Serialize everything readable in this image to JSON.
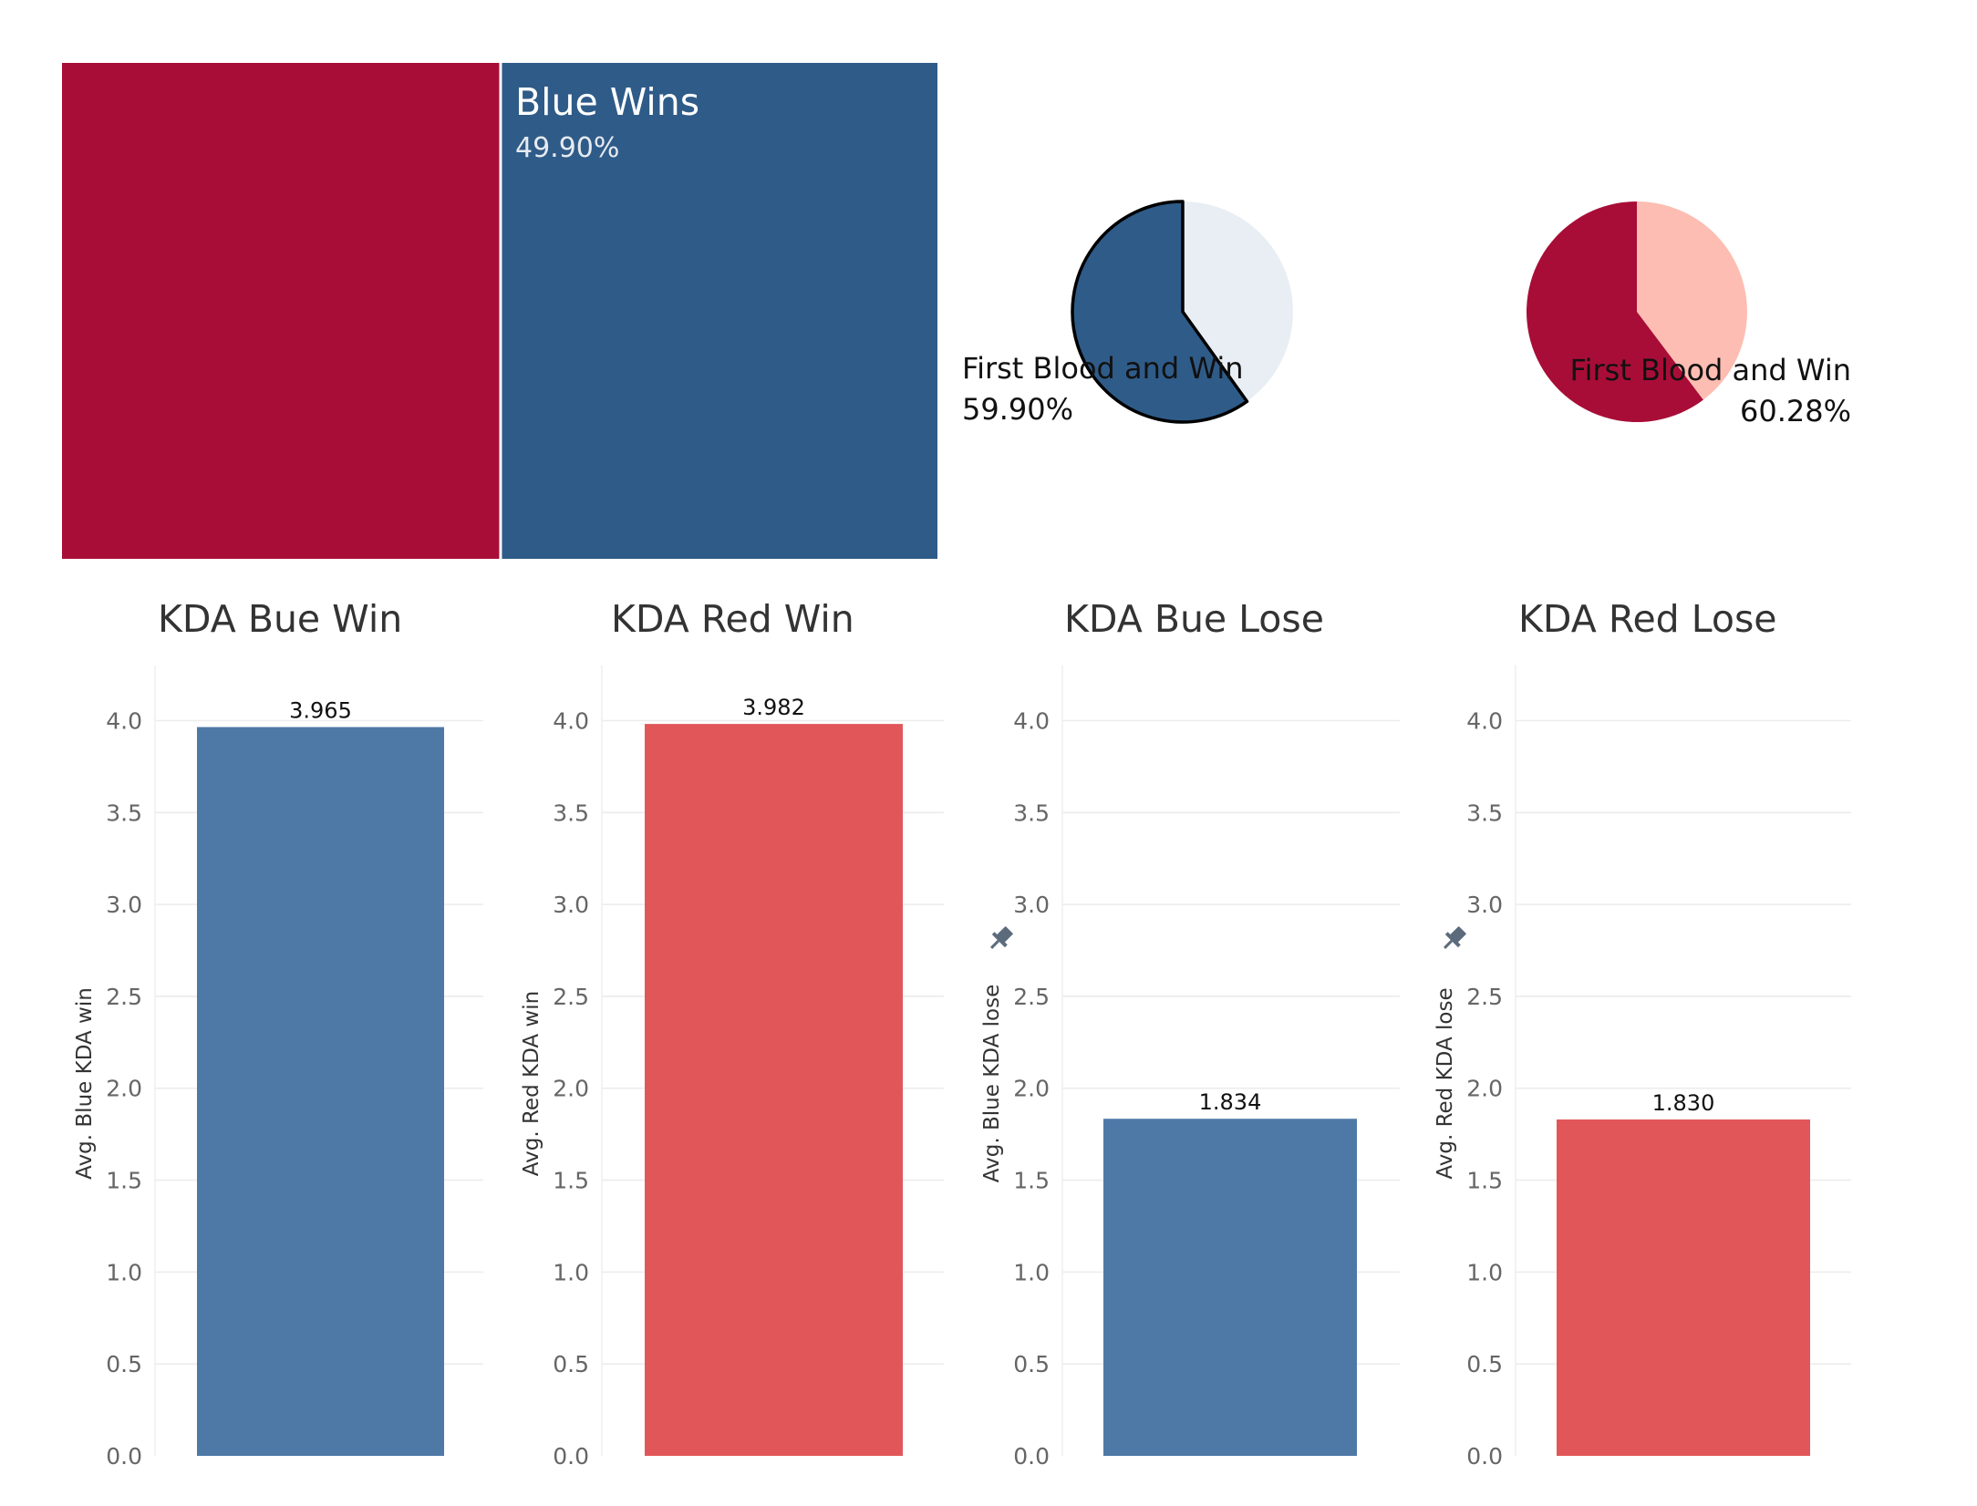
{
  "colors": {
    "red_dark": "#A80D37",
    "blue_dark": "#2F5B88",
    "blue_bar": "#4E79A7",
    "red_bar": "#E15759",
    "pie_blue_rest": "#E8EEF3",
    "pie_red_rest": "#FDBDB2"
  },
  "treemap": {
    "label": "Blue Wins",
    "value_text": "49.90%",
    "red_share": 0.501,
    "blue_share": 0.499
  },
  "pies": [
    {
      "label": "First Blood and Win",
      "value_text": "59.90%",
      "fraction": 0.599,
      "color": "#2F5B88",
      "rest_color": "#E8EEF3"
    },
    {
      "label": "First Blood and Win",
      "value_text": "60.28%",
      "fraction": 0.6028,
      "color": "#A80D37",
      "rest_color": "#FDBDB2"
    }
  ],
  "chart_data": [
    {
      "type": "bar",
      "title": "KDA Bue Win",
      "ylabel": "Avg. Blue KDA win",
      "values": [
        3.965
      ],
      "value_labels": [
        "3.965"
      ],
      "ylim": [
        0,
        4.3
      ],
      "ticks": [
        "0.0",
        "0.5",
        "1.0",
        "1.5",
        "2.0",
        "2.5",
        "3.0",
        "3.5",
        "4.0"
      ],
      "color": "#4E79A7",
      "pinned": false
    },
    {
      "type": "bar",
      "title": "KDA Red Win",
      "ylabel": "Avg. Red KDA win",
      "values": [
        3.982
      ],
      "value_labels": [
        "3.982"
      ],
      "ylim": [
        0,
        4.3
      ],
      "ticks": [
        "0.0",
        "0.5",
        "1.0",
        "1.5",
        "2.0",
        "2.5",
        "3.0",
        "3.5",
        "4.0"
      ],
      "color": "#E15759",
      "pinned": false
    },
    {
      "type": "bar",
      "title": "KDA Bue Lose",
      "ylabel": "Avg. Blue KDA lose",
      "values": [
        1.834
      ],
      "value_labels": [
        "1.834"
      ],
      "ylim": [
        0,
        4.3
      ],
      "ticks": [
        "0.0",
        "0.5",
        "1.0",
        "1.5",
        "2.0",
        "2.5",
        "3.0",
        "3.5",
        "4.0"
      ],
      "color": "#4E79A7",
      "pinned": true
    },
    {
      "type": "bar",
      "title": "KDA Red Lose",
      "ylabel": "Avg. Red KDA lose",
      "values": [
        1.83
      ],
      "value_labels": [
        "1.830"
      ],
      "ylim": [
        0,
        4.3
      ],
      "ticks": [
        "0.0",
        "0.5",
        "1.0",
        "1.5",
        "2.0",
        "2.5",
        "3.0",
        "3.5",
        "4.0"
      ],
      "color": "#E15759",
      "pinned": true
    }
  ]
}
